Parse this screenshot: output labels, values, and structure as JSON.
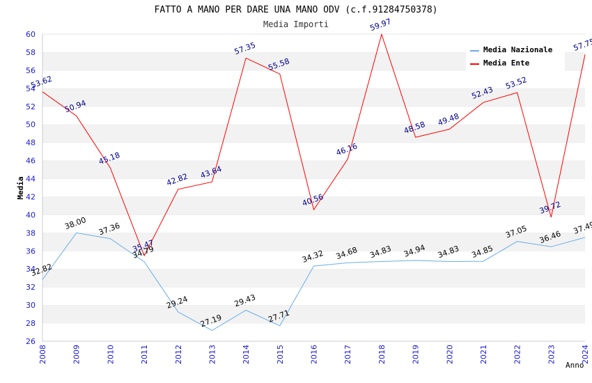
{
  "chart_data": {
    "type": "line",
    "title": "FATTO A MANO PER DARE UNA MANO ODV (c.f.91284750378)",
    "subtitle": "Media Importi",
    "ylabel": "Media",
    "xlabel": "Anno",
    "ylim": [
      26,
      60
    ],
    "y_ticks": [
      "26",
      "28",
      "30",
      "32",
      "34",
      "36",
      "38",
      "40",
      "42",
      "44",
      "46",
      "48",
      "50",
      "52",
      "54",
      "56",
      "58",
      "60"
    ],
    "grid": "horizontal alternating bands",
    "legend_position": "top-right",
    "x": [
      "2008",
      "2009",
      "2010",
      "2011",
      "2012",
      "2013",
      "2014",
      "2015",
      "2016",
      "2017",
      "2018",
      "2019",
      "2020",
      "2021",
      "2022",
      "2023",
      "2024"
    ],
    "series": [
      {
        "name": "Media Nazionale",
        "color": "#6aaee8",
        "label_color": "#000000",
        "values": [
          32.82,
          38.0,
          37.36,
          34.79,
          29.24,
          27.19,
          29.43,
          27.71,
          34.32,
          34.68,
          34.83,
          34.94,
          34.83,
          34.85,
          37.05,
          36.46,
          37.49
        ],
        "labels": [
          "32.82",
          "38.00",
          "37.36",
          "34.79",
          "29.24",
          "27.19",
          "29.43",
          "27.71",
          "34.32",
          "34.68",
          "34.83",
          "34.94",
          "34.83",
          "34.85",
          "37.05",
          "36.46",
          "37.49"
        ]
      },
      {
        "name": "Media Ente",
        "color": "#ff0000",
        "label_color": "#00008b",
        "values": [
          53.62,
          50.94,
          45.18,
          35.47,
          42.82,
          43.64,
          57.35,
          55.58,
          40.56,
          46.16,
          59.97,
          48.58,
          49.48,
          52.43,
          53.52,
          39.72,
          57.75
        ],
        "labels": [
          "53.62",
          "50.94",
          "45.18",
          "35.47",
          "42.82",
          "43.64",
          "57.35",
          "55.58",
          "40.56",
          "46.16",
          "59.97",
          "48.58",
          "49.48",
          "52.43",
          "53.52",
          "39.72",
          "57.75"
        ]
      }
    ]
  }
}
